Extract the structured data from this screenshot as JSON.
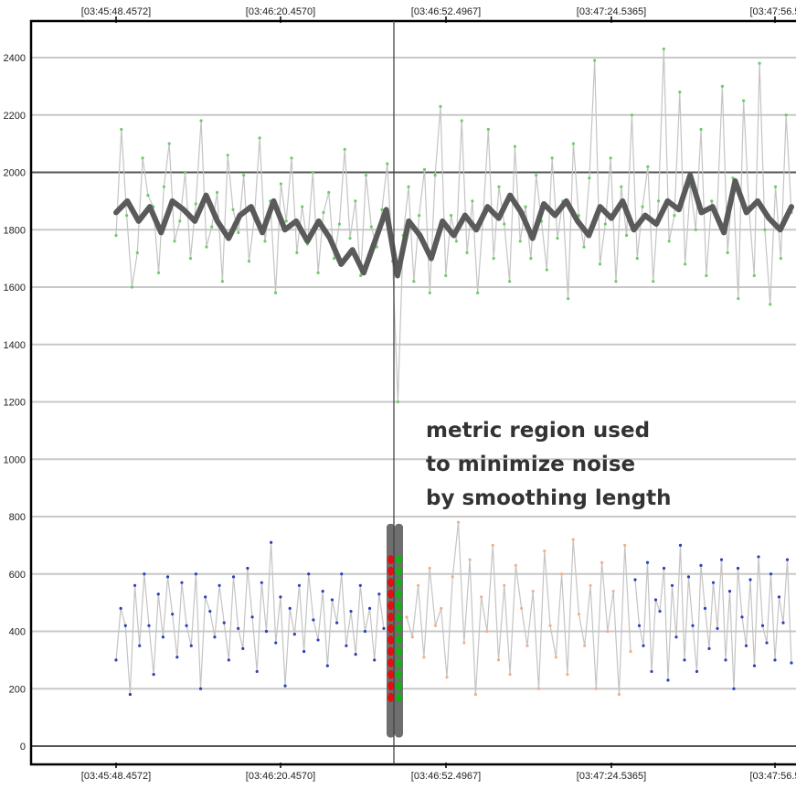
{
  "chart_data": {
    "type": "line",
    "title": "",
    "xlabel": "",
    "ylabel": "",
    "x_ticks": [
      "[03:45:48.4572]",
      "[03:46:20.4570]",
      "[03:46:52.4967]",
      "[03:47:24.5365]",
      "[03:47:56.5"
    ],
    "y_ticks": [
      0,
      200,
      400,
      600,
      800,
      1000,
      1200,
      1400,
      1600,
      1800,
      2000,
      2200,
      2400
    ],
    "ylim": [
      0,
      2500
    ],
    "grid": true,
    "cursor_x": "[03:46:52.4967]",
    "annotation_lines": [
      "metric region used",
      "to minimize noise",
      "by smoothing length"
    ],
    "series": [
      {
        "role": "upper raw samples",
        "style": "grey line with green points",
        "mean_approx": 1820,
        "range_approx": [
          1200,
          2430
        ],
        "values": [
          1780,
          2150,
          1850,
          1600,
          1720,
          2050,
          1920,
          1880,
          1650,
          1950,
          2100,
          1760,
          1830,
          2000,
          1700,
          1890,
          2180,
          1740,
          1810,
          1930,
          1620,
          2060,
          1870,
          1790,
          1990,
          1690,
          1840,
          2120,
          1760,
          1900,
          1580,
          1960,
          1830,
          2050,
          1720,
          1880,
          1750,
          2000,
          1650,
          1860,
          1930,
          1700,
          1820,
          2080,
          1770,
          1900,
          1640,
          1990,
          1810,
          1740,
          1870,
          2030,
          1690,
          1200,
          1780,
          1950,
          1620,
          1850,
          2010,
          1580,
          1990,
          2230,
          1640,
          1850,
          1760,
          2180,
          1720,
          1900,
          1580,
          1840,
          2150,
          1700,
          1950,
          1820,
          1620,
          2090,
          1760,
          1880,
          1700,
          1990,
          1830,
          1660,
          2050,
          1770,
          1900,
          1560,
          2100,
          1850,
          1740,
          1980,
          2390,
          1680,
          1820,
          2050,
          1620,
          1950,
          1780,
          2200,
          1700,
          1880,
          2020,
          1620,
          1900,
          2430,
          1760,
          1850,
          2280,
          1680,
          1950,
          1800,
          2150,
          1640,
          1900,
          1850,
          2300,
          1720,
          1980,
          1560,
          2250,
          1880,
          1640,
          2380,
          1800,
          1540,
          1950,
          1700,
          2200,
          1860
        ]
      },
      {
        "role": "upper smoothed",
        "style": "thick dark grey line",
        "values": [
          1860,
          1900,
          1830,
          1880,
          1790,
          1900,
          1870,
          1830,
          1920,
          1830,
          1770,
          1850,
          1880,
          1790,
          1900,
          1800,
          1830,
          1760,
          1830,
          1770,
          1680,
          1730,
          1650,
          1760,
          1870,
          1640,
          1830,
          1780,
          1700,
          1830,
          1780,
          1850,
          1800,
          1880,
          1840,
          1920,
          1860,
          1770,
          1890,
          1850,
          1900,
          1830,
          1780,
          1880,
          1840,
          1900,
          1800,
          1850,
          1820,
          1900,
          1870,
          1990,
          1860,
          1880,
          1790,
          1970,
          1860,
          1900,
          1840,
          1800,
          1880
        ]
      },
      {
        "role": "lower left samples",
        "style": "grey line with blue points",
        "mean_approx": 420,
        "range_approx": [
          180,
          710
        ],
        "values": [
          300,
          480,
          420,
          180,
          560,
          350,
          600,
          420,
          250,
          530,
          380,
          590,
          460,
          310,
          570,
          420,
          350,
          600,
          200,
          520,
          470,
          380,
          560,
          430,
          300,
          590,
          410,
          340,
          620,
          450,
          260,
          570,
          400,
          710,
          360,
          520,
          210,
          480,
          390,
          560,
          330,
          600,
          440,
          370,
          540,
          280,
          510,
          430,
          600,
          350,
          470,
          320,
          560,
          400,
          480,
          300,
          530,
          410
        ]
      },
      {
        "role": "lower right samples (first half)",
        "style": "grey line with orange points",
        "values": [
          450,
          380,
          560,
          310,
          620,
          420,
          480,
          240,
          590,
          780,
          360,
          650,
          180,
          520,
          400,
          700,
          300,
          560,
          250,
          630,
          480,
          350,
          540,
          200,
          680,
          420,
          310,
          600,
          250,
          720,
          460,
          350,
          560,
          200,
          640,
          400,
          540,
          180,
          700,
          330
        ]
      },
      {
        "role": "lower right samples (second half)",
        "style": "grey line with blue points",
        "values": [
          580,
          420,
          350,
          640,
          260,
          510,
          470,
          620,
          230,
          560,
          380,
          700,
          300,
          590,
          420,
          260,
          630,
          480,
          340,
          570,
          410,
          650,
          300,
          540,
          200,
          620,
          450,
          350,
          580,
          280,
          660,
          420,
          360,
          600,
          300,
          520,
          430,
          650,
          290
        ]
      }
    ],
    "markers": {
      "red_values": [
        650,
        610,
        570,
        530,
        490,
        450,
        410,
        370,
        330,
        290,
        250,
        210,
        170
      ],
      "green_values": [
        650,
        610,
        570,
        530,
        490,
        450,
        410,
        370,
        330,
        290,
        250,
        210,
        170
      ]
    },
    "colors": {
      "grid": "#c8c8c8",
      "axis": "#000000",
      "raw_line": "#c4c4c4",
      "smooth_line": "#5a5a5a",
      "green_point": "#6fc96f",
      "blue_point": "#2a3fb8",
      "orange_point": "#f0b090",
      "cursor": "#444444",
      "metric_bar": "#6e6e6e",
      "red_marker": "#e01010",
      "green_marker": "#18b018"
    }
  }
}
